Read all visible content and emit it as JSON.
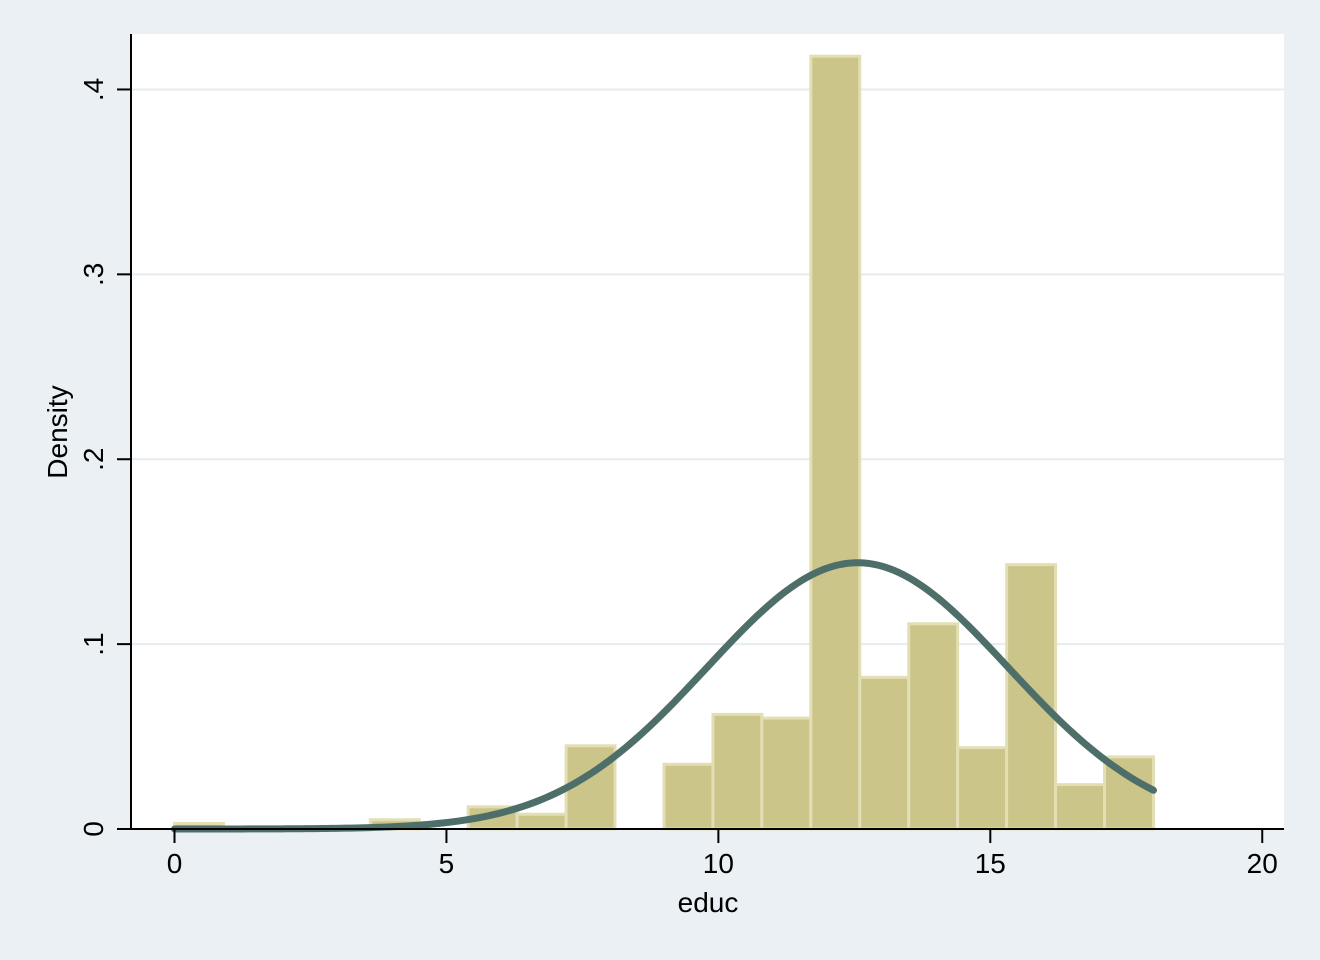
{
  "chart_data": {
    "type": "bar",
    "title": "",
    "xlabel": "educ",
    "ylabel": "Density",
    "xlim": [
      -0.8,
      20.4
    ],
    "ylim": [
      0,
      0.43
    ],
    "x_ticks": [
      0,
      5,
      10,
      15,
      20
    ],
    "x_tick_labels": [
      "0",
      "5",
      "10",
      "15",
      "20"
    ],
    "y_ticks": [
      0,
      0.1,
      0.2,
      0.3,
      0.4
    ],
    "y_tick_labels": [
      "0",
      ".1",
      ".2",
      ".3",
      ".4"
    ],
    "grid": "horizontal",
    "bin_width": 0.9,
    "bins": [
      {
        "start": 0.0,
        "density": 0.003
      },
      {
        "start": 3.6,
        "density": 0.005
      },
      {
        "start": 5.4,
        "density": 0.012
      },
      {
        "start": 6.3,
        "density": 0.008
      },
      {
        "start": 7.2,
        "density": 0.045
      },
      {
        "start": 9.0,
        "density": 0.035
      },
      {
        "start": 9.9,
        "density": 0.062
      },
      {
        "start": 10.8,
        "density": 0.06
      },
      {
        "start": 11.7,
        "density": 0.418
      },
      {
        "start": 12.6,
        "density": 0.082
      },
      {
        "start": 13.5,
        "density": 0.111
      },
      {
        "start": 14.4,
        "density": 0.044
      },
      {
        "start": 15.3,
        "density": 0.143
      },
      {
        "start": 16.2,
        "density": 0.024
      },
      {
        "start": 17.1,
        "density": 0.039
      }
    ],
    "normal_curve": {
      "mean": 12.56,
      "sd": 2.77,
      "x_range": [
        0,
        18
      ]
    },
    "colors": {
      "bar_fill": "#cbc58a",
      "bar_edge": "#e3dfb5",
      "curve": "#4e6e6a",
      "plot_bg": "#ffffff",
      "outer_bg": "#eaf0f3",
      "grid": "#e6ecef"
    }
  }
}
